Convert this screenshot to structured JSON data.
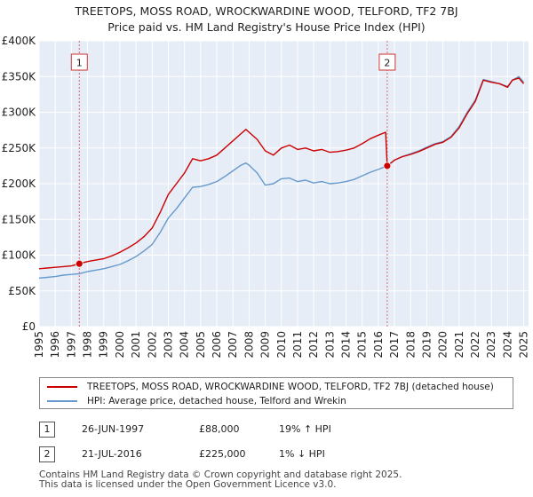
{
  "title": {
    "line1": "TREETOPS, MOSS ROAD, WROCKWARDINE WOOD, TELFORD, TF2 7BJ",
    "line2": "Price paid vs. HM Land Registry's House Price Index (HPI)"
  },
  "chart_data": {
    "type": "line",
    "title": "TREETOPS, MOSS ROAD, WROCKWARDINE WOOD, TELFORD, TF2 7BJ — Price paid vs. HM Land Registry's House Price Index (HPI)",
    "xlim": [
      1995,
      2025.3
    ],
    "ylim": [
      0,
      400000
    ],
    "grid": true,
    "y_ticks": [
      {
        "value": 0,
        "label": "£0"
      },
      {
        "value": 50000,
        "label": "£50K"
      },
      {
        "value": 100000,
        "label": "£100K"
      },
      {
        "value": 150000,
        "label": "£150K"
      },
      {
        "value": 200000,
        "label": "£200K"
      },
      {
        "value": 250000,
        "label": "£250K"
      },
      {
        "value": 300000,
        "label": "£300K"
      },
      {
        "value": 350000,
        "label": "£350K"
      },
      {
        "value": 400000,
        "label": "£400K"
      }
    ],
    "x_ticks": [
      {
        "value": 1995,
        "label": "1995"
      },
      {
        "value": 1996,
        "label": "1996"
      },
      {
        "value": 1997,
        "label": "1997"
      },
      {
        "value": 1998,
        "label": "1998"
      },
      {
        "value": 1999,
        "label": "1999"
      },
      {
        "value": 2000,
        "label": "2000"
      },
      {
        "value": 2001,
        "label": "2001"
      },
      {
        "value": 2002,
        "label": "2002"
      },
      {
        "value": 2003,
        "label": "2003"
      },
      {
        "value": 2004,
        "label": "2004"
      },
      {
        "value": 2005,
        "label": "2005"
      },
      {
        "value": 2006,
        "label": "2006"
      },
      {
        "value": 2007,
        "label": "2007"
      },
      {
        "value": 2008,
        "label": "2008"
      },
      {
        "value": 2009,
        "label": "2009"
      },
      {
        "value": 2010,
        "label": "2010"
      },
      {
        "value": 2011,
        "label": "2011"
      },
      {
        "value": 2012,
        "label": "2012"
      },
      {
        "value": 2013,
        "label": "2013"
      },
      {
        "value": 2014,
        "label": "2014"
      },
      {
        "value": 2015,
        "label": "2015"
      },
      {
        "value": 2016,
        "label": "2016"
      },
      {
        "value": 2017,
        "label": "2017"
      },
      {
        "value": 2018,
        "label": "2018"
      },
      {
        "value": 2019,
        "label": "2019"
      },
      {
        "value": 2020,
        "label": "2020"
      },
      {
        "value": 2021,
        "label": "2021"
      },
      {
        "value": 2022,
        "label": "2022"
      },
      {
        "value": 2023,
        "label": "2023"
      },
      {
        "value": 2024,
        "label": "2024"
      },
      {
        "value": 2025,
        "label": "2025"
      }
    ],
    "series": [
      {
        "name": "TREETOPS, MOSS ROAD, WROCKWARDINE WOOD, TELFORD, TF2 7BJ (detached house)",
        "color": "#cc0000",
        "points": [
          [
            1995.0,
            81000
          ],
          [
            1995.5,
            82000
          ],
          [
            1996.0,
            83000
          ],
          [
            1996.5,
            84000
          ],
          [
            1997.0,
            85000
          ],
          [
            1997.49,
            88000
          ],
          [
            1998.0,
            91000
          ],
          [
            1998.5,
            93000
          ],
          [
            1999.0,
            95000
          ],
          [
            1999.5,
            99000
          ],
          [
            2000.0,
            104000
          ],
          [
            2000.5,
            110000
          ],
          [
            2001.0,
            117000
          ],
          [
            2001.5,
            126000
          ],
          [
            2002.0,
            138000
          ],
          [
            2002.5,
            160000
          ],
          [
            2003.0,
            185000
          ],
          [
            2003.5,
            200000
          ],
          [
            2004.0,
            215000
          ],
          [
            2004.5,
            235000
          ],
          [
            2005.0,
            232000
          ],
          [
            2005.5,
            235000
          ],
          [
            2006.0,
            240000
          ],
          [
            2006.5,
            250000
          ],
          [
            2007.0,
            260000
          ],
          [
            2007.5,
            270000
          ],
          [
            2007.8,
            276000
          ],
          [
            2008.0,
            272000
          ],
          [
            2008.5,
            262000
          ],
          [
            2009.0,
            246000
          ],
          [
            2009.5,
            240000
          ],
          [
            2010.0,
            250000
          ],
          [
            2010.5,
            254000
          ],
          [
            2011.0,
            248000
          ],
          [
            2011.5,
            250000
          ],
          [
            2012.0,
            246000
          ],
          [
            2012.5,
            248000
          ],
          [
            2013.0,
            244000
          ],
          [
            2013.5,
            245000
          ],
          [
            2014.0,
            247000
          ],
          [
            2014.5,
            250000
          ],
          [
            2015.0,
            256000
          ],
          [
            2015.5,
            263000
          ],
          [
            2016.0,
            268000
          ],
          [
            2016.45,
            272000
          ],
          [
            2016.55,
            225000
          ],
          [
            2017.0,
            233000
          ],
          [
            2017.5,
            238000
          ],
          [
            2018.0,
            241000
          ],
          [
            2018.5,
            245000
          ],
          [
            2019.0,
            250000
          ],
          [
            2019.5,
            255000
          ],
          [
            2020.0,
            258000
          ],
          [
            2020.5,
            265000
          ],
          [
            2021.0,
            278000
          ],
          [
            2021.5,
            298000
          ],
          [
            2022.0,
            315000
          ],
          [
            2022.5,
            345000
          ],
          [
            2023.0,
            342000
          ],
          [
            2023.5,
            340000
          ],
          [
            2024.0,
            335000
          ],
          [
            2024.3,
            345000
          ],
          [
            2024.7,
            348000
          ],
          [
            2025.0,
            340000
          ]
        ]
      },
      {
        "name": "HPI: Average price, detached house, Telford and Wrekin",
        "color": "#6699cc",
        "points": [
          [
            1995.0,
            68000
          ],
          [
            1995.5,
            69000
          ],
          [
            1996.0,
            70000
          ],
          [
            1996.5,
            72000
          ],
          [
            1997.0,
            73000
          ],
          [
            1997.49,
            74000
          ],
          [
            1998.0,
            77000
          ],
          [
            1998.5,
            79000
          ],
          [
            1999.0,
            81000
          ],
          [
            1999.5,
            84000
          ],
          [
            2000.0,
            87000
          ],
          [
            2000.5,
            92000
          ],
          [
            2001.0,
            98000
          ],
          [
            2001.5,
            106000
          ],
          [
            2002.0,
            115000
          ],
          [
            2002.5,
            132000
          ],
          [
            2003.0,
            152000
          ],
          [
            2003.5,
            165000
          ],
          [
            2004.0,
            180000
          ],
          [
            2004.5,
            195000
          ],
          [
            2005.0,
            196000
          ],
          [
            2005.5,
            199000
          ],
          [
            2006.0,
            203000
          ],
          [
            2006.5,
            210000
          ],
          [
            2007.0,
            218000
          ],
          [
            2007.5,
            226000
          ],
          [
            2007.8,
            229000
          ],
          [
            2008.0,
            226000
          ],
          [
            2008.5,
            215000
          ],
          [
            2009.0,
            198000
          ],
          [
            2009.5,
            200000
          ],
          [
            2010.0,
            207000
          ],
          [
            2010.5,
            208000
          ],
          [
            2011.0,
            203000
          ],
          [
            2011.5,
            205000
          ],
          [
            2012.0,
            201000
          ],
          [
            2012.5,
            203000
          ],
          [
            2013.0,
            200000
          ],
          [
            2013.5,
            201000
          ],
          [
            2014.0,
            203000
          ],
          [
            2014.5,
            206000
          ],
          [
            2015.0,
            211000
          ],
          [
            2015.5,
            216000
          ],
          [
            2016.0,
            220000
          ],
          [
            2016.55,
            225000
          ],
          [
            2017.0,
            233000
          ],
          [
            2017.5,
            238000
          ],
          [
            2018.0,
            242000
          ],
          [
            2018.5,
            246000
          ],
          [
            2019.0,
            251000
          ],
          [
            2019.5,
            256000
          ],
          [
            2020.0,
            259000
          ],
          [
            2020.5,
            266000
          ],
          [
            2021.0,
            280000
          ],
          [
            2021.5,
            300000
          ],
          [
            2022.0,
            317000
          ],
          [
            2022.5,
            346000
          ],
          [
            2023.0,
            343000
          ],
          [
            2023.5,
            340000
          ],
          [
            2024.0,
            336000
          ],
          [
            2024.3,
            345000
          ],
          [
            2024.7,
            350000
          ],
          [
            2025.0,
            342000
          ]
        ]
      }
    ],
    "sales": [
      {
        "label": "1",
        "x": 1997.49,
        "price": 88000
      },
      {
        "label": "2",
        "x": 2016.55,
        "price": 225000
      }
    ]
  },
  "legend": {
    "items": [
      {
        "label": "TREETOPS, MOSS ROAD, WROCKWARDINE WOOD, TELFORD, TF2 7BJ (detached house)",
        "color": "#cc0000"
      },
      {
        "label": "HPI: Average price, detached house, Telford and Wrekin",
        "color": "#6699cc"
      }
    ]
  },
  "sales_table": [
    {
      "num": "1",
      "date": "26-JUN-1997",
      "price": "£88,000",
      "relation": "19% ↑ HPI"
    },
    {
      "num": "2",
      "date": "21-JUL-2016",
      "price": "£225,000",
      "relation": "1% ↓ HPI"
    }
  ],
  "footer": {
    "line1": "Contains HM Land Registry data © Crown copyright and database right 2025.",
    "line2": "This data is licensed under the Open Government Licence v3.0."
  },
  "colors": {
    "plot_bg": "#e6edf6",
    "grid": "#ffffff",
    "property": "#cc0000",
    "hpi": "#6699cc",
    "marker_line": "#e06666"
  }
}
